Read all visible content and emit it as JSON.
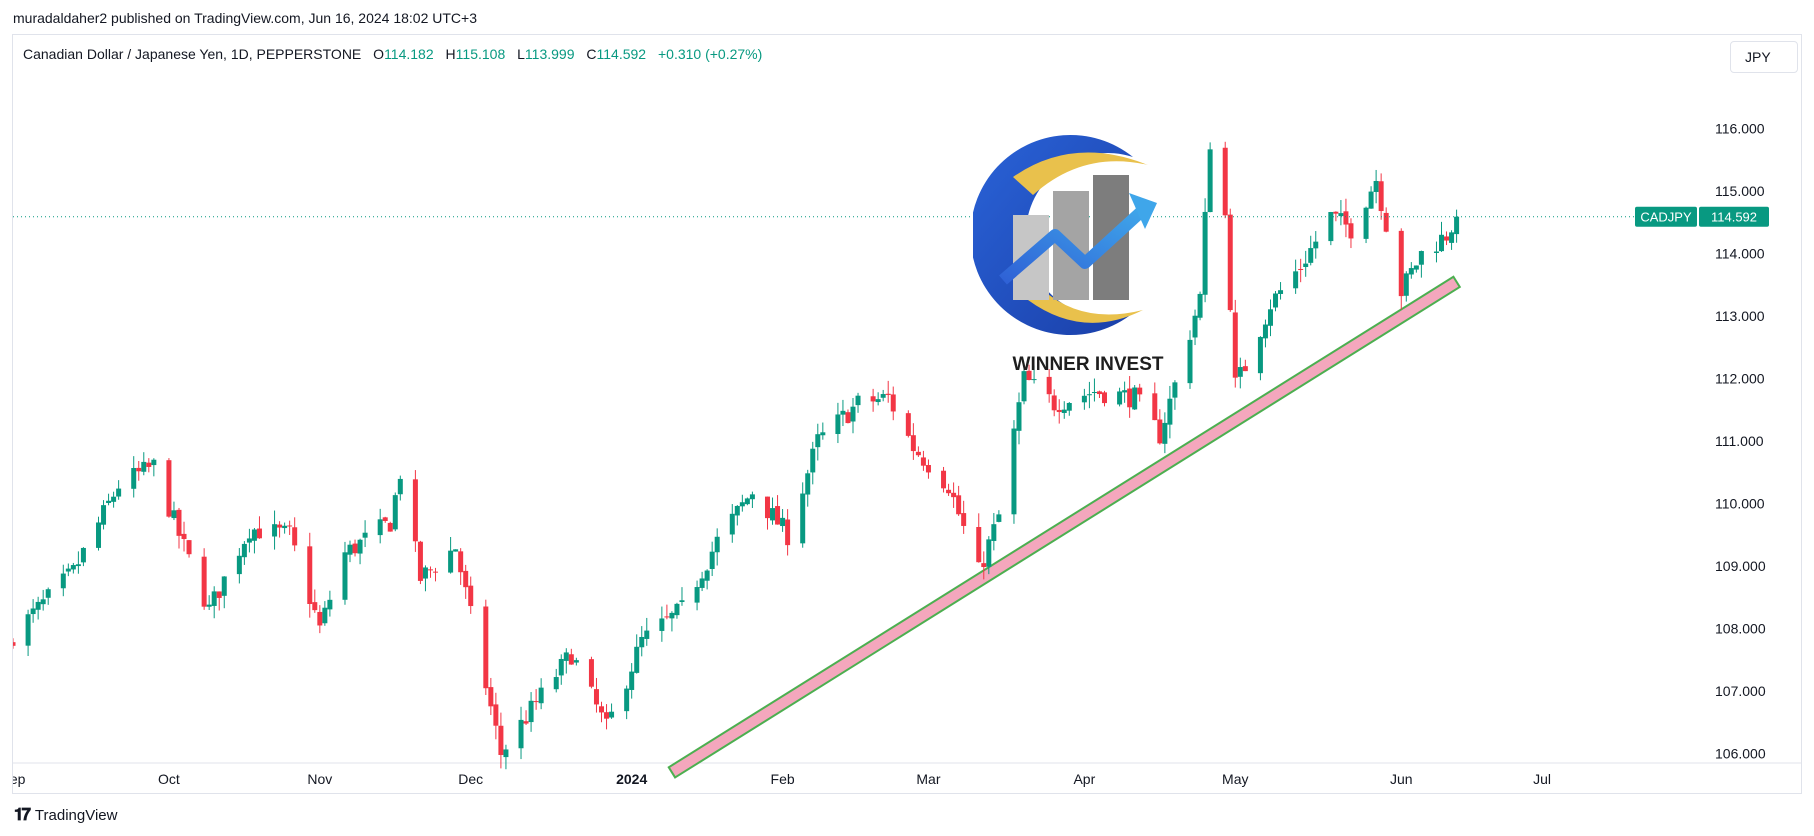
{
  "header": {
    "publisher_line": "muradaldaher2 published on TradingView.com, Jun 16, 2024 18:02 UTC+3"
  },
  "legend": {
    "instrument": "Canadian Dollar / Japanese Yen, 1D, PEPPERSTONE",
    "open_label": "O",
    "open": "114.182",
    "high_label": "H",
    "high": "115.108",
    "low_label": "L",
    "low": "113.999",
    "close_label": "C",
    "close": "114.592",
    "change": "+0.310 (+0.27%)"
  },
  "currency_button": "JPY",
  "price_tag": {
    "symbol": "CADJPY",
    "value": "114.592"
  },
  "logo": {
    "text": "WINNER INVEST",
    "icon": "rising-chart-logo"
  },
  "footer": {
    "brand": "TradingView",
    "icon": "tradingview-logo-icon"
  },
  "colors": {
    "up": "#089981",
    "down": "#f23645",
    "trendline_fill": "#f4a7bd",
    "trendline_border": "#4caf50",
    "last_price": "#089981"
  },
  "chart_data": {
    "type": "candlestick",
    "symbol": "CADJPY",
    "timeframe": "1D",
    "y_axis": {
      "ticks": [
        106,
        107,
        108,
        109,
        110,
        111,
        112,
        113,
        114,
        115,
        116
      ],
      "tick_labels": [
        "106.000",
        "107.000",
        "108.000",
        "109.000",
        "110.000",
        "111.000",
        "112.000",
        "113.000",
        "114.000",
        "115.000",
        "116.000"
      ],
      "range": [
        105.85,
        117.5
      ]
    },
    "x_axis": {
      "range": [
        "2023-09-01",
        "2024-07-31"
      ],
      "ticks": [
        {
          "date": "2023-09-01",
          "label": "Sep",
          "bold": false
        },
        {
          "date": "2023-10-02",
          "label": "Oct",
          "bold": false
        },
        {
          "date": "2023-11-01",
          "label": "Nov",
          "bold": false
        },
        {
          "date": "2023-12-01",
          "label": "Dec",
          "bold": false
        },
        {
          "date": "2024-01-02",
          "label": "2024",
          "bold": true
        },
        {
          "date": "2024-02-01",
          "label": "Feb",
          "bold": false
        },
        {
          "date": "2024-03-01",
          "label": "Mar",
          "bold": false
        },
        {
          "date": "2024-04-01",
          "label": "Apr",
          "bold": false
        },
        {
          "date": "2024-05-01",
          "label": "May",
          "bold": false
        },
        {
          "date": "2024-06-03",
          "label": "Jun",
          "bold": false
        },
        {
          "date": "2024-07-01",
          "label": "Jul",
          "bold": false
        }
      ]
    },
    "last_price": 114.592,
    "trendline": {
      "start": {
        "date": "2024-01-10",
        "price": 105.7
      },
      "end": {
        "date": "2024-06-14",
        "price": 113.55
      }
    },
    "anchors": [
      {
        "date": "2023-09-01",
        "close": 107.9
      },
      {
        "date": "2023-09-13",
        "close": 108.9
      },
      {
        "date": "2023-09-22",
        "close": 110.3
      },
      {
        "date": "2023-09-29",
        "close": 110.6
      },
      {
        "date": "2023-10-04",
        "close": 109.5
      },
      {
        "date": "2023-10-10",
        "close": 108.3
      },
      {
        "date": "2023-10-18",
        "close": 109.6
      },
      {
        "date": "2023-10-26",
        "close": 109.5
      },
      {
        "date": "2023-11-01",
        "close": 108.0
      },
      {
        "date": "2023-11-06",
        "close": 109.2
      },
      {
        "date": "2023-11-15",
        "close": 109.7
      },
      {
        "date": "2023-11-17",
        "close": 110.5
      },
      {
        "date": "2023-11-21",
        "close": 108.8
      },
      {
        "date": "2023-11-28",
        "close": 109.3
      },
      {
        "date": "2023-12-07",
        "close": 106.0
      },
      {
        "date": "2023-12-13",
        "close": 106.7
      },
      {
        "date": "2023-12-21",
        "close": 107.6
      },
      {
        "date": "2023-12-28",
        "close": 106.4
      },
      {
        "date": "2024-01-04",
        "close": 107.8
      },
      {
        "date": "2024-01-12",
        "close": 108.3
      },
      {
        "date": "2024-01-19",
        "close": 109.4
      },
      {
        "date": "2024-01-26",
        "close": 110.2
      },
      {
        "date": "2024-02-02",
        "close": 109.5
      },
      {
        "date": "2024-02-08",
        "close": 111.0
      },
      {
        "date": "2024-02-16",
        "close": 111.6
      },
      {
        "date": "2024-02-22",
        "close": 111.7
      },
      {
        "date": "2024-02-27",
        "close": 110.9
      },
      {
        "date": "2024-03-05",
        "close": 110.3
      },
      {
        "date": "2024-03-11",
        "close": 108.9
      },
      {
        "date": "2024-03-15",
        "close": 109.8
      },
      {
        "date": "2024-03-20",
        "close": 112.0
      },
      {
        "date": "2024-03-26",
        "close": 111.6
      },
      {
        "date": "2024-04-03",
        "close": 111.8
      },
      {
        "date": "2024-04-11",
        "close": 111.7
      },
      {
        "date": "2024-04-16",
        "close": 111.1
      },
      {
        "date": "2024-04-19",
        "close": 111.9
      },
      {
        "date": "2024-04-24",
        "close": 113.3
      },
      {
        "date": "2024-04-26",
        "close": 115.8
      },
      {
        "date": "2024-04-29",
        "close": 114.6
      },
      {
        "date": "2024-05-01",
        "close": 111.9
      },
      {
        "date": "2024-05-03",
        "close": 112.2
      },
      {
        "date": "2024-05-08",
        "close": 113.2
      },
      {
        "date": "2024-05-14",
        "close": 113.8
      },
      {
        "date": "2024-05-20",
        "close": 114.6
      },
      {
        "date": "2024-05-24",
        "close": 114.4
      },
      {
        "date": "2024-05-29",
        "close": 115.2
      },
      {
        "date": "2024-06-03",
        "close": 113.4
      },
      {
        "date": "2024-06-07",
        "close": 114.0
      },
      {
        "date": "2024-06-12",
        "close": 114.3
      },
      {
        "date": "2024-06-14",
        "close": 114.592
      }
    ]
  }
}
